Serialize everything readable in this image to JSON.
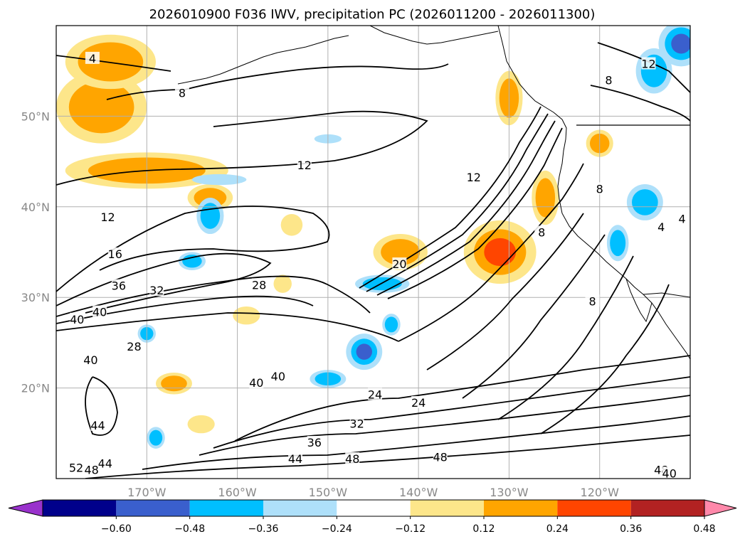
{
  "title": "2026010900 F036 IWV, precipitation PC (2026011200 - 2026011300)",
  "chart_data": {
    "type": "heatmap",
    "title": "2026010900 F036 IWV, precipitation PC (2026011200 - 2026011300)",
    "map": {
      "lon_range": [
        -180,
        -110
      ],
      "lat_range": [
        10,
        60
      ],
      "grid": true,
      "coastlines": true
    },
    "x_ticks": [
      {
        "value": -170,
        "label": "170°W"
      },
      {
        "value": -160,
        "label": "160°W"
      },
      {
        "value": -150,
        "label": "150°W"
      },
      {
        "value": -140,
        "label": "140°W"
      },
      {
        "value": -130,
        "label": "130°W"
      },
      {
        "value": -120,
        "label": "120°W"
      }
    ],
    "y_ticks": [
      {
        "value": 20,
        "label": "20°N"
      },
      {
        "value": 30,
        "label": "30°N"
      },
      {
        "value": 40,
        "label": "40°N"
      },
      {
        "value": 50,
        "label": "50°N"
      }
    ],
    "colorbar": {
      "location": "bottom",
      "extend": "both",
      "boundaries": [
        -0.72,
        -0.6,
        -0.48,
        -0.36,
        -0.24,
        -0.12,
        0.12,
        0.24,
        0.36,
        0.48,
        0.6,
        0.72
      ],
      "tick_values": [
        -0.6,
        -0.48,
        -0.36,
        -0.24,
        -0.12,
        0.12,
        0.24,
        0.36,
        0.48,
        0.6
      ],
      "tick_labels": [
        "−0.60",
        "−0.48",
        "−0.36",
        "−0.24",
        "−0.12",
        "0.12",
        "0.24",
        "0.36",
        "0.48",
        "0.60"
      ],
      "colors": [
        "#9932cc",
        "#00008b",
        "#3a5fcd",
        "#00bfff",
        "#aee0fa",
        "#ffffff",
        "#fde68a",
        "#ffa500",
        "#ff4500",
        "#b22222",
        "#ff88aa"
      ]
    },
    "iwv_contour_labels": [
      {
        "text": "4",
        "lon": -176,
        "lat": 56.4
      },
      {
        "text": "8",
        "lon": -166.1,
        "lat": 52.6
      },
      {
        "text": "12",
        "lon": -174.3,
        "lat": 38.9
      },
      {
        "text": "12",
        "lon": -152.6,
        "lat": 44.6
      },
      {
        "text": "12",
        "lon": -133.9,
        "lat": 43.3
      },
      {
        "text": "12",
        "lon": -114.6,
        "lat": 55.8
      },
      {
        "text": "16",
        "lon": -173.5,
        "lat": 34.8
      },
      {
        "text": "36",
        "lon": -173.1,
        "lat": 31.3
      },
      {
        "text": "32",
        "lon": -168.9,
        "lat": 30.8
      },
      {
        "text": "28",
        "lon": -157.6,
        "lat": 31.4
      },
      {
        "text": "40",
        "lon": -177.7,
        "lat": 27.6
      },
      {
        "text": "40",
        "lon": -175.2,
        "lat": 28.4
      },
      {
        "text": "28",
        "lon": -171.4,
        "lat": 24.6
      },
      {
        "text": "40",
        "lon": -176.2,
        "lat": 23.1
      },
      {
        "text": "40",
        "lon": -157.9,
        "lat": 20.6
      },
      {
        "text": "40",
        "lon": -155.5,
        "lat": 21.3
      },
      {
        "text": "24",
        "lon": -144.8,
        "lat": 19.3
      },
      {
        "text": "24",
        "lon": -140,
        "lat": 18.4
      },
      {
        "text": "32",
        "lon": -146.8,
        "lat": 16.1
      },
      {
        "text": "36",
        "lon": -151.5,
        "lat": 14.0
      },
      {
        "text": "44",
        "lon": -175.4,
        "lat": 15.9
      },
      {
        "text": "44",
        "lon": -153.6,
        "lat": 12.2
      },
      {
        "text": "48",
        "lon": -147.3,
        "lat": 12.2
      },
      {
        "text": "48",
        "lon": -137.6,
        "lat": 12.4
      },
      {
        "text": "44",
        "lon": -174.6,
        "lat": 11.7
      },
      {
        "text": "52",
        "lon": -177.8,
        "lat": 11.2
      },
      {
        "text": "48",
        "lon": -176.1,
        "lat": 11.0
      },
      {
        "text": "20",
        "lon": -142.1,
        "lat": 33.7
      },
      {
        "text": "8",
        "lon": -126.4,
        "lat": 37.2
      },
      {
        "text": "8",
        "lon": -119.0,
        "lat": 54.0
      },
      {
        "text": "8",
        "lon": -120.0,
        "lat": 42.0
      },
      {
        "text": "8",
        "lon": -120.8,
        "lat": 29.6
      },
      {
        "text": "4",
        "lon": -113.2,
        "lat": 37.8
      },
      {
        "text": "4",
        "lon": -110.9,
        "lat": 38.7
      },
      {
        "text": "48",
        "lon": -113.2,
        "lat": 11.0
      },
      {
        "text": "40",
        "lon": -112.3,
        "lat": 10.6
      }
    ],
    "precip_pc_regions": [
      {
        "level": 0.36,
        "lon": -175,
        "lat": 51,
        "rx": 5,
        "ry": 4
      },
      {
        "level": 0.3,
        "lon": -170,
        "lat": 44,
        "rx": 9,
        "ry": 2
      },
      {
        "level": 0.36,
        "lon": -163,
        "lat": 41,
        "rx": 2.5,
        "ry": 1.5
      },
      {
        "level": 0.3,
        "lon": -174,
        "lat": 56,
        "rx": 5,
        "ry": 3
      },
      {
        "level": 0.3,
        "lon": -142,
        "lat": 35,
        "rx": 3,
        "ry": 2
      },
      {
        "level": 0.42,
        "lon": -131,
        "lat": 35,
        "rx": 4,
        "ry": 3.5
      },
      {
        "level": 0.3,
        "lon": -126,
        "lat": 41,
        "rx": 1.5,
        "ry": 3
      },
      {
        "level": 0.3,
        "lon": -130,
        "lat": 52,
        "rx": 1.5,
        "ry": 3
      },
      {
        "level": 0.3,
        "lon": -120,
        "lat": 47,
        "rx": 1.5,
        "ry": 1.5
      },
      {
        "level": 0.24,
        "lon": -159,
        "lat": 28,
        "rx": 1.5,
        "ry": 1
      },
      {
        "level": 0.24,
        "lon": -155,
        "lat": 31.5,
        "rx": 1,
        "ry": 1
      },
      {
        "level": 0.24,
        "lon": -154,
        "lat": 38,
        "rx": 1.2,
        "ry": 1.2
      },
      {
        "level": 0.3,
        "lon": -167,
        "lat": 20.5,
        "rx": 2,
        "ry": 1.2
      },
      {
        "level": 0.24,
        "lon": -164,
        "lat": 16,
        "rx": 1.5,
        "ry": 1
      },
      {
        "level": -0.42,
        "lon": -146,
        "lat": 24,
        "rx": 2,
        "ry": 2
      },
      {
        "level": -0.3,
        "lon": -144,
        "lat": 31.5,
        "rx": 3,
        "ry": 1
      },
      {
        "level": -0.3,
        "lon": -163,
        "lat": 39,
        "rx": 1.5,
        "ry": 2
      },
      {
        "level": -0.3,
        "lon": -165,
        "lat": 34,
        "rx": 1.5,
        "ry": 1
      },
      {
        "level": -0.3,
        "lon": -143,
        "lat": 27,
        "rx": 1,
        "ry": 1.2
      },
      {
        "level": -0.3,
        "lon": -150,
        "lat": 21,
        "rx": 2,
        "ry": 1
      },
      {
        "level": -0.3,
        "lon": -115,
        "lat": 40.5,
        "rx": 2,
        "ry": 2
      },
      {
        "level": -0.3,
        "lon": -114,
        "lat": 55,
        "rx": 2,
        "ry": 2.5
      },
      {
        "level": -0.42,
        "lon": -111,
        "lat": 58,
        "rx": 2.5,
        "ry": 2.5
      },
      {
        "level": -0.3,
        "lon": -118,
        "lat": 36,
        "rx": 1.2,
        "ry": 2
      },
      {
        "level": -0.24,
        "lon": -162,
        "lat": 43,
        "rx": 3,
        "ry": 0.6
      },
      {
        "level": -0.24,
        "lon": -150,
        "lat": 47.5,
        "rx": 1.5,
        "ry": 0.5
      },
      {
        "level": -0.3,
        "lon": -170,
        "lat": 26,
        "rx": 1,
        "ry": 1
      },
      {
        "level": -0.3,
        "lon": -169,
        "lat": 14.5,
        "rx": 1,
        "ry": 1.2
      }
    ]
  }
}
